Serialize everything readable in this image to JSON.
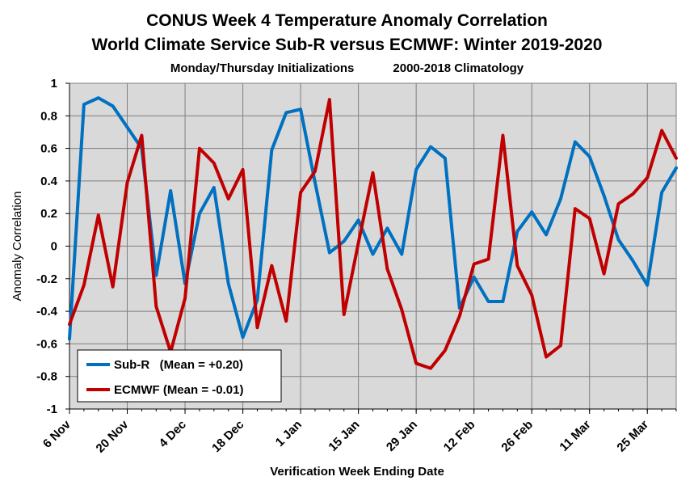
{
  "chart_data": {
    "type": "line",
    "title": "CONUS Week 4 Temperature Anomaly Correlation",
    "subtitle": "World Climate Service Sub-R versus ECMWF: Winter 2019-2020",
    "subtitle2_left": "Monday/Thursday Initializations",
    "subtitle2_right": "2000-2018 Climatology",
    "xlabel": "Verification Week Ending Date",
    "ylabel": "Anomaly Correlation",
    "ylim": [
      -1,
      1
    ],
    "yticks": [
      "1",
      "0.8",
      "0.6",
      "0.4",
      "0.2",
      "0",
      "-0.2",
      "-0.4",
      "-0.6",
      "-0.8",
      "-1"
    ],
    "xticks": [
      "6 Nov",
      "20 Nov",
      "4 Dec",
      "18 Dec",
      "1 Jan",
      "15 Jan",
      "29 Jan",
      "12 Feb",
      "26 Feb",
      "11 Mar",
      "25 Mar"
    ],
    "grid": true,
    "legend_position": "bottom-left",
    "series": [
      {
        "name": "Sub-R",
        "legend_label": "Sub-R   (Mean = +0.20)",
        "color": "#0070C0",
        "values": [
          -0.57,
          0.87,
          0.91,
          0.86,
          0.73,
          0.6,
          -0.18,
          0.34,
          -0.23,
          0.2,
          0.36,
          -0.23,
          -0.56,
          -0.33,
          0.59,
          0.82,
          0.84,
          0.39,
          -0.04,
          0.03,
          0.16,
          -0.05,
          0.11,
          -0.05,
          0.47,
          0.61,
          0.54,
          -0.38,
          -0.19,
          -0.34,
          -0.34,
          0.09,
          0.21,
          0.07,
          0.29,
          0.64,
          0.55,
          0.31,
          0.04,
          -0.09,
          -0.24,
          0.33,
          0.48
        ]
      },
      {
        "name": "ECMWF",
        "legend_label": "ECMWF (Mean = -0.01)",
        "color": "#C00000",
        "values": [
          -0.48,
          -0.24,
          0.19,
          -0.25,
          0.39,
          0.68,
          -0.37,
          -0.65,
          -0.32,
          0.6,
          0.51,
          0.29,
          0.47,
          -0.5,
          -0.12,
          -0.46,
          0.33,
          0.46,
          0.9,
          -0.42,
          0.02,
          0.45,
          -0.14,
          -0.39,
          -0.72,
          -0.75,
          -0.64,
          -0.43,
          -0.11,
          -0.08,
          0.68,
          -0.12,
          -0.3,
          -0.68,
          -0.61,
          0.23,
          0.17,
          -0.17,
          0.26,
          0.32,
          0.42,
          0.71,
          0.54
        ]
      }
    ]
  }
}
